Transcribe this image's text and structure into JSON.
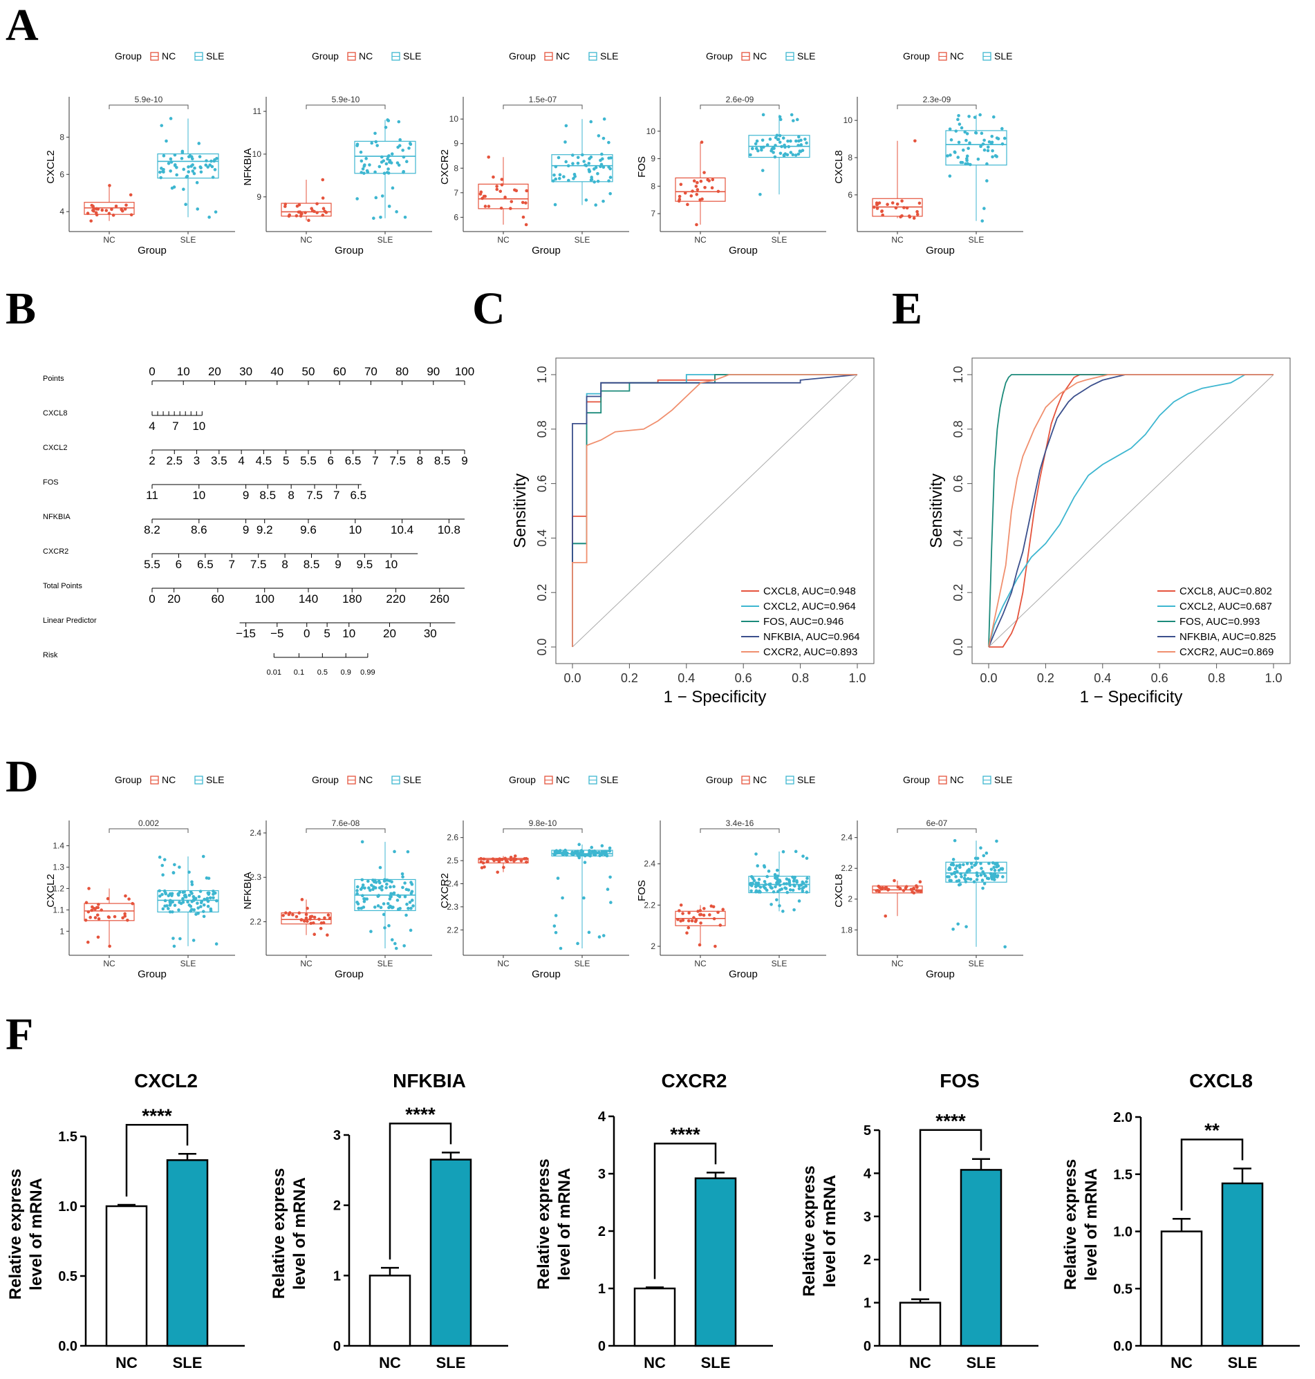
{
  "panel_labels": {
    "A": "A",
    "B": "B",
    "C": "C",
    "D": "D",
    "E": "E",
    "F": "F"
  },
  "colors": {
    "nc": "#E5533C",
    "sle": "#3DB6D0",
    "bar_sle": "#14A0B8",
    "fos": "#1B8A7A",
    "nfkbia": "#3B4F8C",
    "cxcr2_roc": "#F08F6E"
  },
  "chart_data": [
    {
      "id": "A",
      "type": "box",
      "legend": {
        "title": "Group",
        "entries": [
          "NC",
          "SLE"
        ]
      },
      "xlabel": "Group",
      "categories": [
        "NC",
        "SLE"
      ],
      "plots": [
        {
          "gene": "CXCL2",
          "pvalue": "5.9e-10",
          "ylim": [
            3.3,
            9.5
          ],
          "yticks": [
            4,
            6,
            8
          ],
          "NC": {
            "min": 3.5,
            "q1": 3.85,
            "median": 4.2,
            "q3": 4.5,
            "max": 5.4,
            "n": 25
          },
          "SLE": {
            "min": 3.7,
            "q1": 5.8,
            "median": 6.7,
            "q3": 7.1,
            "max": 9.0,
            "n": 60
          }
        },
        {
          "gene": "NFKBIA",
          "pvalue": "5.9e-10",
          "ylim": [
            8.35,
            11.05
          ],
          "yticks": [
            9,
            10,
            11
          ],
          "NC": {
            "min": 8.45,
            "q1": 8.55,
            "median": 8.65,
            "q3": 8.85,
            "max": 9.4,
            "n": 25
          },
          "SLE": {
            "min": 8.5,
            "q1": 9.55,
            "median": 9.95,
            "q3": 10.3,
            "max": 10.8,
            "n": 60
          }
        },
        {
          "gene": "CXCR2",
          "pvalue": "1.5e-07",
          "ylim": [
            5.7,
            10.4
          ],
          "yticks": [
            6,
            7,
            8,
            9,
            10
          ],
          "NC": {
            "min": 5.7,
            "q1": 6.35,
            "median": 6.75,
            "q3": 7.35,
            "max": 8.45,
            "n": 25
          },
          "SLE": {
            "min": 6.5,
            "q1": 7.45,
            "median": 8.1,
            "q3": 8.55,
            "max": 10.0,
            "n": 60
          }
        },
        {
          "gene": "FOS",
          "pvalue": "2.6e-09",
          "ylim": [
            6.6,
            10.8
          ],
          "yticks": [
            7,
            8,
            9,
            10
          ],
          "NC": {
            "min": 6.6,
            "q1": 7.45,
            "median": 7.8,
            "q3": 8.3,
            "max": 9.6,
            "n": 25
          },
          "SLE": {
            "min": 7.7,
            "q1": 9.05,
            "median": 9.45,
            "q3": 9.85,
            "max": 10.6,
            "n": 60
          }
        },
        {
          "gene": "CXCL8",
          "pvalue": "2.3e-09",
          "ylim": [
            4.4,
            10.6
          ],
          "yticks": [
            6,
            8,
            10
          ],
          "NC": {
            "min": 4.75,
            "q1": 4.85,
            "median": 5.35,
            "q3": 5.8,
            "max": 8.9,
            "n": 25
          },
          "SLE": {
            "min": 4.6,
            "q1": 7.6,
            "median": 8.7,
            "q3": 9.45,
            "max": 10.3,
            "n": 60
          }
        }
      ]
    },
    {
      "id": "B",
      "type": "nomogram",
      "rows": [
        {
          "label": "Points",
          "ticks": [
            "0",
            "10",
            "20",
            "30",
            "40",
            "50",
            "60",
            "70",
            "80",
            "90",
            "100"
          ],
          "minor": 0
        },
        {
          "label": "CXCL8",
          "ticks": [
            "4",
            "7",
            "10"
          ],
          "minor": 9
        },
        {
          "label": "CXCL2",
          "ticks": [
            "2",
            "2.5",
            "3",
            "3.5",
            "4",
            "4.5",
            "5",
            "5.5",
            "6",
            "6.5",
            "7",
            "7.5",
            "8",
            "8.5",
            "9"
          ],
          "minor": 0
        },
        {
          "label": "FOS",
          "ticks": [
            "11",
            "10",
            "9",
            "8.5",
            "8",
            "7.5",
            "7",
            "6.5"
          ],
          "minor": 0
        },
        {
          "label": "NFKBIA",
          "ticks": [
            "8.2",
            "8.6",
            "9",
            "9.2",
            "9.6",
            "10",
            "10.4",
            "10.8"
          ],
          "minor": 0
        },
        {
          "label": "CXCR2",
          "ticks": [
            "5.5",
            "6",
            "6.5",
            "7",
            "7.5",
            "8",
            "8.5",
            "9",
            "9.5",
            "10"
          ],
          "minor": 0
        },
        {
          "label": "Total Points",
          "ticks": [
            "0",
            "20",
            "60",
            "100",
            "140",
            "180",
            "220",
            "260"
          ],
          "minor": 0
        },
        {
          "label": "Linear Predictor",
          "ticks": [
            "−15",
            "−5",
            "0",
            "5",
            "10",
            "20",
            "30"
          ],
          "minor": 0
        },
        {
          "label": "Risk",
          "ticks": [
            "0.01",
            "0.1",
            "0.5",
            "0.9",
            "0.99"
          ],
          "minor": 0
        }
      ]
    },
    {
      "id": "C",
      "type": "line",
      "xlabel": "1 − Specificity",
      "ylabel": "Sensitivity",
      "xlim": [
        0,
        1
      ],
      "ylim": [
        0,
        1
      ],
      "ticks": [
        "0.0",
        "0.2",
        "0.4",
        "0.6",
        "0.8",
        "1.0"
      ],
      "series": [
        {
          "name": "CXCL8",
          "auc": "0.948",
          "legend": "CXCL8, AUC=0.948",
          "x": [
            0,
            0,
            0.05,
            0.05,
            0.1,
            0.1,
            0.3,
            0.3,
            0.5,
            0.5,
            1
          ],
          "y": [
            0,
            0.48,
            0.48,
            0.9,
            0.9,
            0.97,
            0.97,
            0.98,
            0.98,
            1,
            1
          ]
        },
        {
          "name": "CXCL2",
          "auc": "0.964",
          "legend": "CXCL2, AUC=0.964",
          "x": [
            0,
            0,
            0.05,
            0.05,
            0.1,
            0.1,
            0.4,
            0.4,
            1
          ],
          "y": [
            0,
            0.38,
            0.38,
            0.93,
            0.93,
            0.97,
            0.97,
            1,
            1
          ]
        },
        {
          "name": "FOS",
          "auc": "0.946",
          "legend": "FOS, AUC=0.946",
          "x": [
            0,
            0,
            0.05,
            0.05,
            0.1,
            0.1,
            0.2,
            0.2,
            0.5,
            0.5,
            1
          ],
          "y": [
            0,
            0.38,
            0.38,
            0.86,
            0.86,
            0.94,
            0.94,
            0.97,
            0.97,
            1,
            1
          ]
        },
        {
          "name": "NFKBIA",
          "auc": "0.964",
          "legend": "NFKBIA, AUC=0.964",
          "x": [
            0,
            0,
            0.05,
            0.05,
            0.1,
            0.1,
            0.8,
            0.8,
            1
          ],
          "y": [
            0,
            0.82,
            0.82,
            0.92,
            0.92,
            0.97,
            0.97,
            0.98,
            1
          ]
        },
        {
          "name": "CXCR2",
          "auc": "0.893",
          "legend": "CXCR2, AUC=0.893",
          "x": [
            0,
            0,
            0.05,
            0.05,
            0.1,
            0.15,
            0.25,
            0.3,
            0.35,
            0.4,
            0.45,
            0.5,
            0.55,
            1
          ],
          "y": [
            0,
            0.31,
            0.31,
            0.74,
            0.76,
            0.79,
            0.8,
            0.83,
            0.87,
            0.92,
            0.97,
            0.98,
            1,
            1
          ]
        }
      ]
    },
    {
      "id": "E",
      "type": "line",
      "xlabel": "1 − Specificity",
      "ylabel": "Sensitivity",
      "xlim": [
        0,
        1
      ],
      "ylim": [
        0,
        1
      ],
      "ticks": [
        "0.0",
        "0.2",
        "0.4",
        "0.6",
        "0.8",
        "1.0"
      ],
      "series": [
        {
          "name": "CXCL8",
          "auc": "0.802",
          "legend": "CXCL8, AUC=0.802",
          "x": [
            0,
            0.05,
            0.08,
            0.1,
            0.12,
            0.14,
            0.16,
            0.18,
            0.2,
            0.22,
            0.24,
            0.26,
            0.28,
            0.3,
            0.32,
            0.35,
            1
          ],
          "y": [
            0,
            0,
            0.05,
            0.1,
            0.2,
            0.35,
            0.5,
            0.62,
            0.72,
            0.82,
            0.88,
            0.93,
            0.96,
            0.99,
            1,
            1,
            1
          ]
        },
        {
          "name": "CXCL2",
          "auc": "0.687",
          "legend": "CXCL2, AUC=0.687",
          "x": [
            0,
            0.02,
            0.05,
            0.1,
            0.15,
            0.2,
            0.25,
            0.3,
            0.35,
            0.4,
            0.45,
            0.5,
            0.55,
            0.6,
            0.65,
            0.7,
            0.75,
            0.8,
            0.85,
            0.9,
            1
          ],
          "y": [
            0,
            0.08,
            0.15,
            0.25,
            0.33,
            0.38,
            0.45,
            0.55,
            0.63,
            0.67,
            0.7,
            0.73,
            0.78,
            0.85,
            0.9,
            0.93,
            0.95,
            0.96,
            0.97,
            1,
            1
          ]
        },
        {
          "name": "FOS",
          "auc": "0.993",
          "legend": "FOS, AUC=0.993",
          "x": [
            0,
            0.01,
            0.02,
            0.03,
            0.04,
            0.05,
            0.06,
            0.07,
            0.08,
            1
          ],
          "y": [
            0,
            0.35,
            0.65,
            0.8,
            0.88,
            0.93,
            0.97,
            0.99,
            1,
            1
          ]
        },
        {
          "name": "NFKBIA",
          "auc": "0.825",
          "legend": "NFKBIA, AUC=0.825",
          "x": [
            0,
            0.02,
            0.05,
            0.08,
            0.1,
            0.12,
            0.14,
            0.16,
            0.18,
            0.2,
            0.22,
            0.24,
            0.26,
            0.28,
            0.3,
            0.33,
            0.36,
            0.4,
            0.44,
            0.48,
            1
          ],
          "y": [
            0,
            0.05,
            0.12,
            0.2,
            0.28,
            0.35,
            0.45,
            0.55,
            0.65,
            0.72,
            0.78,
            0.84,
            0.87,
            0.9,
            0.92,
            0.94,
            0.96,
            0.98,
            0.99,
            1,
            1
          ]
        },
        {
          "name": "CXCR2",
          "auc": "0.869",
          "legend": "CXCR2, AUC=0.869",
          "x": [
            0,
            0.03,
            0.06,
            0.08,
            0.1,
            0.12,
            0.14,
            0.16,
            0.18,
            0.2,
            0.22,
            0.25,
            0.28,
            0.31,
            0.34,
            0.38,
            0.42,
            0.46,
            1
          ],
          "y": [
            0,
            0.15,
            0.3,
            0.5,
            0.62,
            0.7,
            0.75,
            0.8,
            0.84,
            0.88,
            0.9,
            0.93,
            0.95,
            0.97,
            0.98,
            0.99,
            1,
            1,
            1
          ]
        }
      ]
    },
    {
      "id": "D",
      "type": "box",
      "legend": {
        "title": "Group",
        "entries": [
          "NC",
          "SLE"
        ]
      },
      "xlabel": "Group",
      "categories": [
        "NC",
        "SLE"
      ],
      "plots": [
        {
          "gene": "CXCL2",
          "pvalue": "0.002",
          "ylim": [
            0.92,
            1.46
          ],
          "yticks": [
            1.0,
            1.1,
            1.2,
            1.3,
            1.4
          ],
          "NC": {
            "min": 0.93,
            "q1": 1.05,
            "median": 1.095,
            "q3": 1.13,
            "max": 1.2,
            "n": 30
          },
          "SLE": {
            "min": 0.93,
            "q1": 1.09,
            "median": 1.145,
            "q3": 1.19,
            "max": 1.35,
            "n": 100
          }
        },
        {
          "gene": "NFKBIA",
          "pvalue": "7.6e-08",
          "ylim": [
            2.14,
            2.4
          ],
          "yticks": [
            2.2,
            2.3,
            2.4
          ],
          "NC": {
            "min": 2.17,
            "q1": 2.195,
            "median": 2.205,
            "q3": 2.22,
            "max": 2.25,
            "n": 30
          },
          "SLE": {
            "min": 2.14,
            "q1": 2.225,
            "median": 2.26,
            "q3": 2.295,
            "max": 2.38,
            "n": 100
          }
        },
        {
          "gene": "CXCR2",
          "pvalue": "9.8e-10",
          "ylim": [
            2.12,
            2.62
          ],
          "yticks": [
            2.2,
            2.3,
            2.4,
            2.5,
            2.6
          ],
          "NC": {
            "min": 2.45,
            "q1": 2.49,
            "median": 2.505,
            "q3": 2.51,
            "max": 2.52,
            "n": 30
          },
          "SLE": {
            "min": 2.12,
            "q1": 2.52,
            "median": 2.53,
            "q3": 2.545,
            "max": 2.57,
            "n": 100
          }
        },
        {
          "gene": "FOS",
          "pvalue": "3.4e-16",
          "ylim": [
            1.99,
            2.55
          ],
          "yticks": [
            2.0,
            2.2,
            2.4
          ],
          "NC": {
            "min": 2.0,
            "q1": 2.1,
            "median": 2.135,
            "q3": 2.17,
            "max": 2.2,
            "n": 30
          },
          "SLE": {
            "min": 2.17,
            "q1": 2.26,
            "median": 2.3,
            "q3": 2.34,
            "max": 2.46,
            "n": 100
          }
        },
        {
          "gene": "CXCL8",
          "pvalue": "6e-07",
          "ylim": [
            1.68,
            2.43
          ],
          "yticks": [
            1.8,
            2.0,
            2.2,
            2.4
          ],
          "NC": {
            "min": 1.89,
            "q1": 2.04,
            "median": 2.06,
            "q3": 2.085,
            "max": 2.12,
            "n": 30
          },
          "SLE": {
            "min": 1.69,
            "q1": 2.11,
            "median": 2.17,
            "q3": 2.24,
            "max": 2.38,
            "n": 100
          }
        }
      ]
    },
    {
      "id": "F",
      "type": "bar",
      "ylabel": [
        "Relative express",
        "level of mRNA"
      ],
      "categories": [
        "NC",
        "SLE"
      ],
      "plots": [
        {
          "gene": "CXCL2",
          "ylim": [
            0,
            1.5
          ],
          "yticks": [
            "0.0",
            "0.5",
            "1.0",
            "1.5"
          ],
          "values": [
            1.0,
            1.33
          ],
          "errors": [
            0.01,
            0.045
          ],
          "sig": "****"
        },
        {
          "gene": "NFKBIA",
          "ylim": [
            0,
            3
          ],
          "yticks": [
            "0",
            "1",
            "2",
            "3"
          ],
          "values": [
            1.0,
            2.65
          ],
          "errors": [
            0.11,
            0.1
          ],
          "sig": "****"
        },
        {
          "gene": "CXCR2",
          "ylim": [
            0,
            4
          ],
          "yticks": [
            "0",
            "1",
            "2",
            "3",
            "4"
          ],
          "values": [
            1.0,
            2.92
          ],
          "errors": [
            0.02,
            0.1
          ],
          "sig": "****"
        },
        {
          "gene": "FOS",
          "ylim": [
            0,
            5
          ],
          "yticks": [
            "0",
            "1",
            "2",
            "3",
            "4",
            "5"
          ],
          "values": [
            1.0,
            4.08
          ],
          "errors": [
            0.08,
            0.25
          ],
          "sig": "****"
        },
        {
          "gene": "CXCL8",
          "ylim": [
            0,
            2.0
          ],
          "yticks": [
            "0.0",
            "0.5",
            "1.0",
            "1.5",
            "2.0"
          ],
          "values": [
            1.0,
            1.42
          ],
          "errors": [
            0.11,
            0.13
          ],
          "sig": "**"
        }
      ]
    }
  ]
}
